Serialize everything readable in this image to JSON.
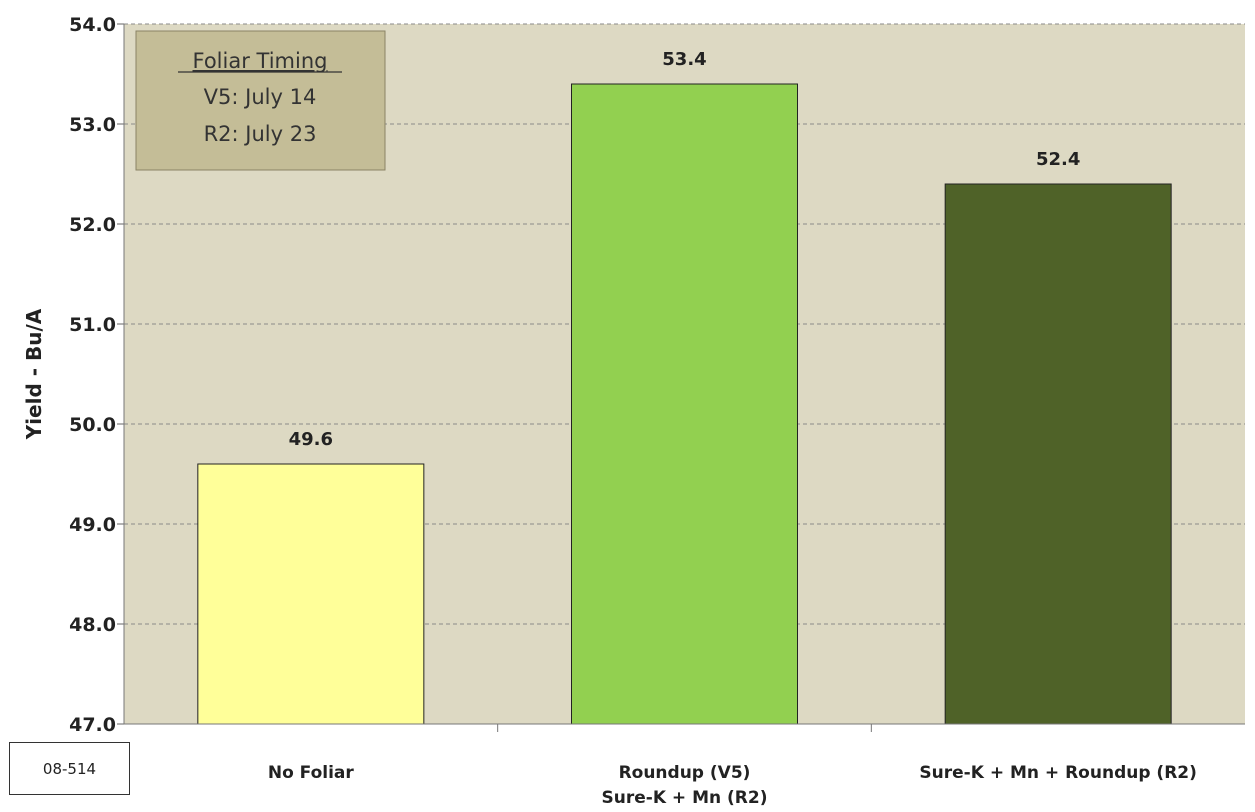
{
  "chart_data": {
    "type": "bar",
    "title": "",
    "xlabel": "",
    "ylabel": "Yield - Bu/A",
    "ylim": [
      47.0,
      54.0
    ],
    "yticks": [
      "47.0",
      "48.0",
      "49.0",
      "50.0",
      "51.0",
      "52.0",
      "53.0",
      "54.0"
    ],
    "grid": true,
    "categories": [
      [
        "No Foliar"
      ],
      [
        "Roundup (V5)",
        "Sure-K + Mn (R2)"
      ],
      [
        "Sure-K + Mn + Roundup (R2)"
      ]
    ],
    "values": [
      49.6,
      53.4,
      52.4
    ],
    "data_labels": [
      "49.6",
      "53.4",
      "52.4"
    ],
    "bar_colors": [
      "#FFFF99",
      "#92D050",
      "#4F6228"
    ],
    "plot_background": "#DDD9C3",
    "annotation": {
      "heading": "Foliar Timing",
      "lines": [
        "V5: July 14",
        "R2: July 23"
      ],
      "background": "#C4BD97"
    }
  },
  "trial_code": "08-514"
}
